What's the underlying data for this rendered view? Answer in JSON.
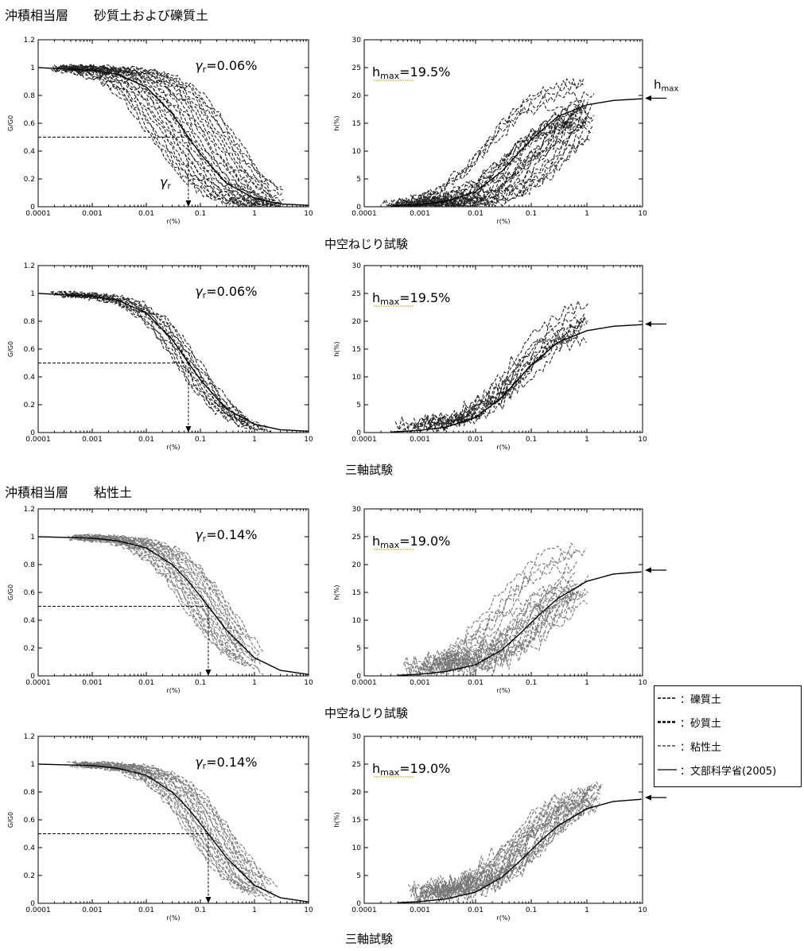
{
  "headings": {
    "top_left": "沖積相当層　　砂質土および礫質土",
    "mid_left": "沖積相当層　　粘性土"
  },
  "captions": {
    "cap1": "中空ねじり試験",
    "cap2": "三軸試験",
    "cap3": "中空ねじり試験",
    "cap4": "三軸試験"
  },
  "axis_text": {
    "g_ylabel": "G/G0",
    "h_ylabel": "h(%)",
    "xlabel": "r(%)",
    "gamma_symbol": "γr",
    "hmax_symbol": "hmax"
  },
  "legend": {
    "items": [
      {
        "label": "：礫質土",
        "style": "dash-black"
      },
      {
        "label": "：砂質土",
        "style": "dash-black-bold"
      },
      {
        "label": "：粘性土",
        "style": "dash-gray"
      },
      {
        "label": "：文部科学省(2005)",
        "style": "solid"
      }
    ]
  },
  "colors": {
    "dash_sand": "#222222",
    "dash_clay": "#777777",
    "ref_curve": "#000000"
  },
  "chart_data": [
    {
      "type": "line",
      "id": "g1",
      "xscale": "log",
      "xlim": [
        0.0001,
        10
      ],
      "ylim": [
        0,
        1.2
      ],
      "xticks": [
        "0.0001",
        "0.001",
        "0.01",
        "0.1",
        "1",
        "10"
      ],
      "yticks": [
        "0",
        "0.2",
        "0.4",
        "0.6",
        "0.8",
        "1",
        "1.2"
      ],
      "xlabel": "r(%)",
      "ylabel": "G/G0",
      "annotation": "=0.06%",
      "gamma_r": 0.06,
      "reference_curve": {
        "x": [
          0.0001,
          0.001,
          0.003,
          0.01,
          0.03,
          0.06,
          0.1,
          0.3,
          1,
          3,
          10
        ],
        "y": [
          1.0,
          0.98,
          0.95,
          0.86,
          0.67,
          0.5,
          0.38,
          0.17,
          0.06,
          0.02,
          0.01
        ]
      },
      "dashed_family": {
        "count": 26,
        "gamma_min": 0.012,
        "gamma_max": 0.45,
        "x_start": 0.0003,
        "x_end": 2.5,
        "style": "sand"
      }
    },
    {
      "type": "line",
      "id": "h1",
      "xscale": "log",
      "xlim": [
        0.0001,
        10
      ],
      "ylim": [
        0,
        30
      ],
      "xticks": [
        "0.0001",
        "0.001",
        "0.01",
        "0.1",
        "1",
        "10"
      ],
      "yticks": [
        "0",
        "5",
        "10",
        "15",
        "20",
        "25",
        "30"
      ],
      "xlabel": "r(%)",
      "ylabel": "h(%)",
      "annotation": "=19.5%",
      "hmax": 19.5,
      "hmax_arrow_label": "hmax",
      "reference_curve": {
        "x": [
          0.0003,
          0.001,
          0.003,
          0.01,
          0.03,
          0.06,
          0.1,
          0.3,
          1,
          3,
          10
        ],
        "y": [
          0.1,
          0.4,
          1.0,
          2.7,
          6.4,
          9.7,
          12.1,
          16.2,
          18.3,
          19.1,
          19.4
        ]
      },
      "dashed_family": {
        "count": 26,
        "ref_min": 0.012,
        "ref_max": 0.6,
        "hmax_min": 15,
        "hmax_max": 24,
        "x_start": 0.0002,
        "x_end": 1.5,
        "floor": 0.5,
        "style": "sand"
      }
    },
    {
      "type": "line",
      "id": "g2",
      "xscale": "log",
      "xlim": [
        0.0001,
        10
      ],
      "ylim": [
        0,
        1.2
      ],
      "xticks": [
        "0.0001",
        "0.001",
        "0.01",
        "0.1",
        "1",
        "10"
      ],
      "yticks": [
        "0",
        "0.2",
        "0.4",
        "0.6",
        "0.8",
        "1",
        "1.2"
      ],
      "xlabel": "r(%)",
      "ylabel": "G/G0",
      "annotation": "=0.06%",
      "gamma_r": 0.06,
      "reference_curve": {
        "x": [
          0.0001,
          0.001,
          0.003,
          0.01,
          0.03,
          0.06,
          0.1,
          0.3,
          1,
          3,
          10
        ],
        "y": [
          1.0,
          0.98,
          0.95,
          0.86,
          0.67,
          0.5,
          0.38,
          0.17,
          0.06,
          0.02,
          0.01
        ]
      },
      "dashed_family": {
        "count": 12,
        "gamma_min": 0.035,
        "gamma_max": 0.1,
        "x_start": 0.0003,
        "x_end": 1.2,
        "style": "sand"
      }
    },
    {
      "type": "line",
      "id": "h2",
      "xscale": "log",
      "xlim": [
        0.0001,
        10
      ],
      "ylim": [
        0,
        30
      ],
      "xticks": [
        "0.0001",
        "0.001",
        "0.01",
        "0.1",
        "1",
        "10"
      ],
      "yticks": [
        "0",
        "5",
        "10",
        "15",
        "20",
        "25",
        "30"
      ],
      "xlabel": "r(%)",
      "ylabel": "h(%)",
      "annotation": "=19.5%",
      "hmax": 19.5,
      "reference_curve": {
        "x": [
          0.0003,
          0.001,
          0.003,
          0.01,
          0.03,
          0.06,
          0.1,
          0.3,
          1,
          3,
          10
        ],
        "y": [
          0.1,
          0.4,
          1.0,
          2.7,
          6.4,
          9.7,
          12.1,
          16.2,
          18.3,
          19.1,
          19.4
        ]
      },
      "dashed_family": {
        "count": 12,
        "ref_min": 0.04,
        "ref_max": 0.1,
        "hmax_min": 18,
        "hmax_max": 24,
        "x_start": 0.0003,
        "x_end": 1.3,
        "floor": 2.0,
        "style": "sand"
      }
    },
    {
      "type": "line",
      "id": "g3",
      "xscale": "log",
      "xlim": [
        0.0001,
        10
      ],
      "ylim": [
        0,
        1.2
      ],
      "xticks": [
        "0.0001",
        "0.001",
        "0.01",
        "0.1",
        "1",
        "10"
      ],
      "yticks": [
        "0",
        "0.2",
        "0.4",
        "0.6",
        "0.8",
        "1",
        "1.2"
      ],
      "xlabel": "r(%)",
      "ylabel": "G/G0",
      "annotation": "=0.14%",
      "gamma_r": 0.14,
      "reference_curve": {
        "x": [
          0.0001,
          0.001,
          0.003,
          0.01,
          0.03,
          0.06,
          0.14,
          0.3,
          1,
          3,
          10
        ],
        "y": [
          1.0,
          0.99,
          0.97,
          0.92,
          0.8,
          0.68,
          0.5,
          0.33,
          0.13,
          0.04,
          0.01
        ]
      },
      "dashed_family": {
        "count": 22,
        "gamma_min": 0.05,
        "gamma_max": 0.35,
        "x_start": 0.0006,
        "x_end": 0.9,
        "style": "clay"
      }
    },
    {
      "type": "line",
      "id": "h3",
      "xscale": "log",
      "xlim": [
        0.0001,
        10
      ],
      "ylim": [
        0,
        30
      ],
      "xticks": [
        "0.0001",
        "0.001",
        "0.01",
        "0.1",
        "1",
        "10"
      ],
      "yticks": [
        "0",
        "5",
        "10",
        "15",
        "20",
        "25",
        "30"
      ],
      "xlabel": "r(%)",
      "ylabel": "h(%)",
      "annotation": "=19.0%",
      "hmax": 19.0,
      "reference_curve": {
        "x": [
          0.0004,
          0.001,
          0.003,
          0.01,
          0.03,
          0.06,
          0.14,
          0.3,
          1,
          3,
          10
        ],
        "y": [
          0.1,
          0.3,
          0.8,
          2.0,
          4.7,
          7.4,
          11.0,
          13.9,
          17.0,
          18.3,
          18.7
        ]
      },
      "dashed_family": {
        "count": 22,
        "ref_min": 0.015,
        "ref_max": 0.4,
        "hmax_min": 15,
        "hmax_max": 25,
        "x_start": 0.0005,
        "x_end": 1.1,
        "floor": 3.0,
        "style": "clay"
      }
    },
    {
      "type": "line",
      "id": "g4",
      "xscale": "log",
      "xlim": [
        0.0001,
        10
      ],
      "ylim": [
        0,
        1.2
      ],
      "xticks": [
        "0.0001",
        "0.001",
        "0.01",
        "0.1",
        "1",
        "10"
      ],
      "yticks": [
        "0",
        "0.2",
        "0.4",
        "0.6",
        "0.8",
        "1",
        "1.2"
      ],
      "xlabel": "r(%)",
      "ylabel": "G/G0",
      "annotation": "=0.14%",
      "gamma_r": 0.14,
      "reference_curve": {
        "x": [
          0.0001,
          0.001,
          0.003,
          0.01,
          0.03,
          0.06,
          0.14,
          0.3,
          1,
          3,
          10
        ],
        "y": [
          1.0,
          0.99,
          0.97,
          0.92,
          0.8,
          0.68,
          0.5,
          0.33,
          0.13,
          0.04,
          0.01
        ]
      },
      "dashed_family": {
        "count": 22,
        "gamma_min": 0.06,
        "gamma_max": 0.4,
        "x_start": 0.0006,
        "x_end": 1.5,
        "style": "clay"
      }
    },
    {
      "type": "line",
      "id": "h4",
      "xscale": "log",
      "xlim": [
        0.0001,
        10
      ],
      "ylim": [
        0,
        30
      ],
      "xticks": [
        "0.0001",
        "0.001",
        "0.01",
        "0.1",
        "1",
        "10"
      ],
      "yticks": [
        "0",
        "5",
        "10",
        "15",
        "20",
        "25",
        "30"
      ],
      "xlabel": "r(%)",
      "ylabel": "h(%)",
      "annotation": "=19.0%",
      "hmax": 19.0,
      "reference_curve": {
        "x": [
          0.0004,
          0.001,
          0.003,
          0.01,
          0.03,
          0.06,
          0.14,
          0.3,
          1,
          3,
          10
        ],
        "y": [
          0.1,
          0.3,
          0.8,
          2.0,
          4.7,
          7.4,
          11.0,
          13.9,
          17.0,
          18.3,
          18.7
        ]
      },
      "dashed_family": {
        "count": 22,
        "ref_min": 0.04,
        "ref_max": 0.2,
        "hmax_min": 18,
        "hmax_max": 22,
        "x_start": 0.0006,
        "x_end": 2.0,
        "floor": 3.5,
        "style": "clay"
      }
    }
  ]
}
